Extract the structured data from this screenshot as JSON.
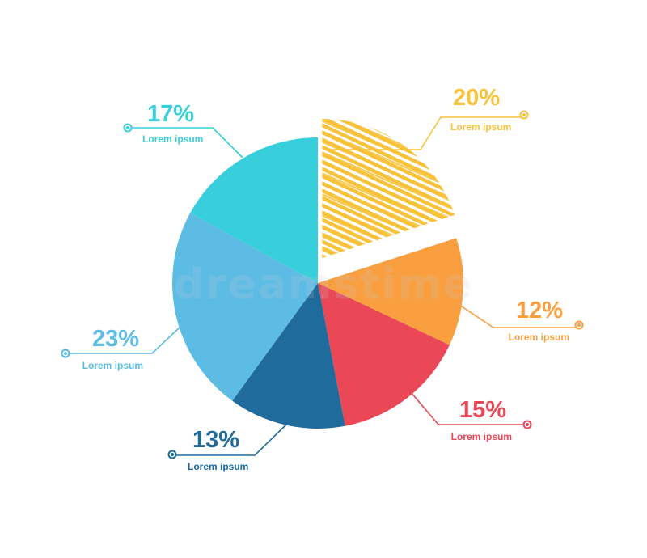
{
  "chart_data": {
    "type": "pie",
    "slices": [
      {
        "value": 20,
        "label": "20%",
        "sub": "Lorem ipsum",
        "color": "#f8c23b",
        "style": "scribble",
        "exploded": true
      },
      {
        "value": 12,
        "label": "12%",
        "sub": "Lorem ipsum",
        "color": "#f99f3f"
      },
      {
        "value": 15,
        "label": "15%",
        "sub": "Lorem ipsum",
        "color": "#ea4856"
      },
      {
        "value": 13,
        "label": "13%",
        "sub": "Lorem ipsum",
        "color": "#1f6b9c"
      },
      {
        "value": 23,
        "label": "23%",
        "sub": "Lorem ipsum",
        "color": "#5dbce4"
      },
      {
        "value": 17,
        "label": "17%",
        "sub": "Lorem ipsum",
        "color": "#36cfdb"
      }
    ]
  },
  "watermark": "dreamstime"
}
